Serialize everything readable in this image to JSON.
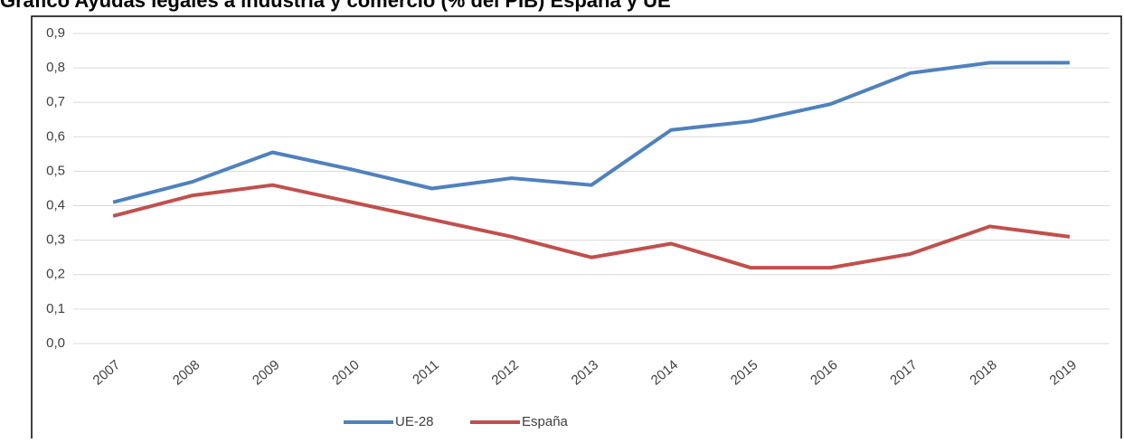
{
  "chart_data": {
    "type": "line",
    "title": "Gráfico Ayudas legales a industria y comercio (% del PIB) España y UE",
    "categories": [
      "2007",
      "2008",
      "2009",
      "2010",
      "2011",
      "2012",
      "2013",
      "2014",
      "2015",
      "2016",
      "2017",
      "2018",
      "2019"
    ],
    "series": [
      {
        "name": "UE-28",
        "color": "#4f81bd",
        "values": [
          0.41,
          0.47,
          0.555,
          0.505,
          0.45,
          0.48,
          0.46,
          0.62,
          0.645,
          0.695,
          0.785,
          0.815,
          0.815
        ]
      },
      {
        "name": "España",
        "color": "#c0504d",
        "values": [
          0.37,
          0.43,
          0.46,
          0.41,
          0.36,
          0.31,
          0.25,
          0.29,
          0.22,
          0.22,
          0.26,
          0.34,
          0.31
        ]
      }
    ],
    "ylim": [
      0,
      0.9
    ],
    "yticks": [
      {
        "value": 0,
        "label": "0,0"
      },
      {
        "value": 0.1,
        "label": "0,1"
      },
      {
        "value": 0.2,
        "label": "0,2"
      },
      {
        "value": 0.3,
        "label": "0,3"
      },
      {
        "value": 0.4,
        "label": "0,4"
      },
      {
        "value": 0.5,
        "label": "0,5"
      },
      {
        "value": 0.6,
        "label": "0,6"
      },
      {
        "value": 0.7,
        "label": "0,7"
      },
      {
        "value": 0.8,
        "label": "0,8"
      },
      {
        "value": 0.9,
        "label": "0,9"
      }
    ],
    "grid": true,
    "legend": "bottom"
  }
}
